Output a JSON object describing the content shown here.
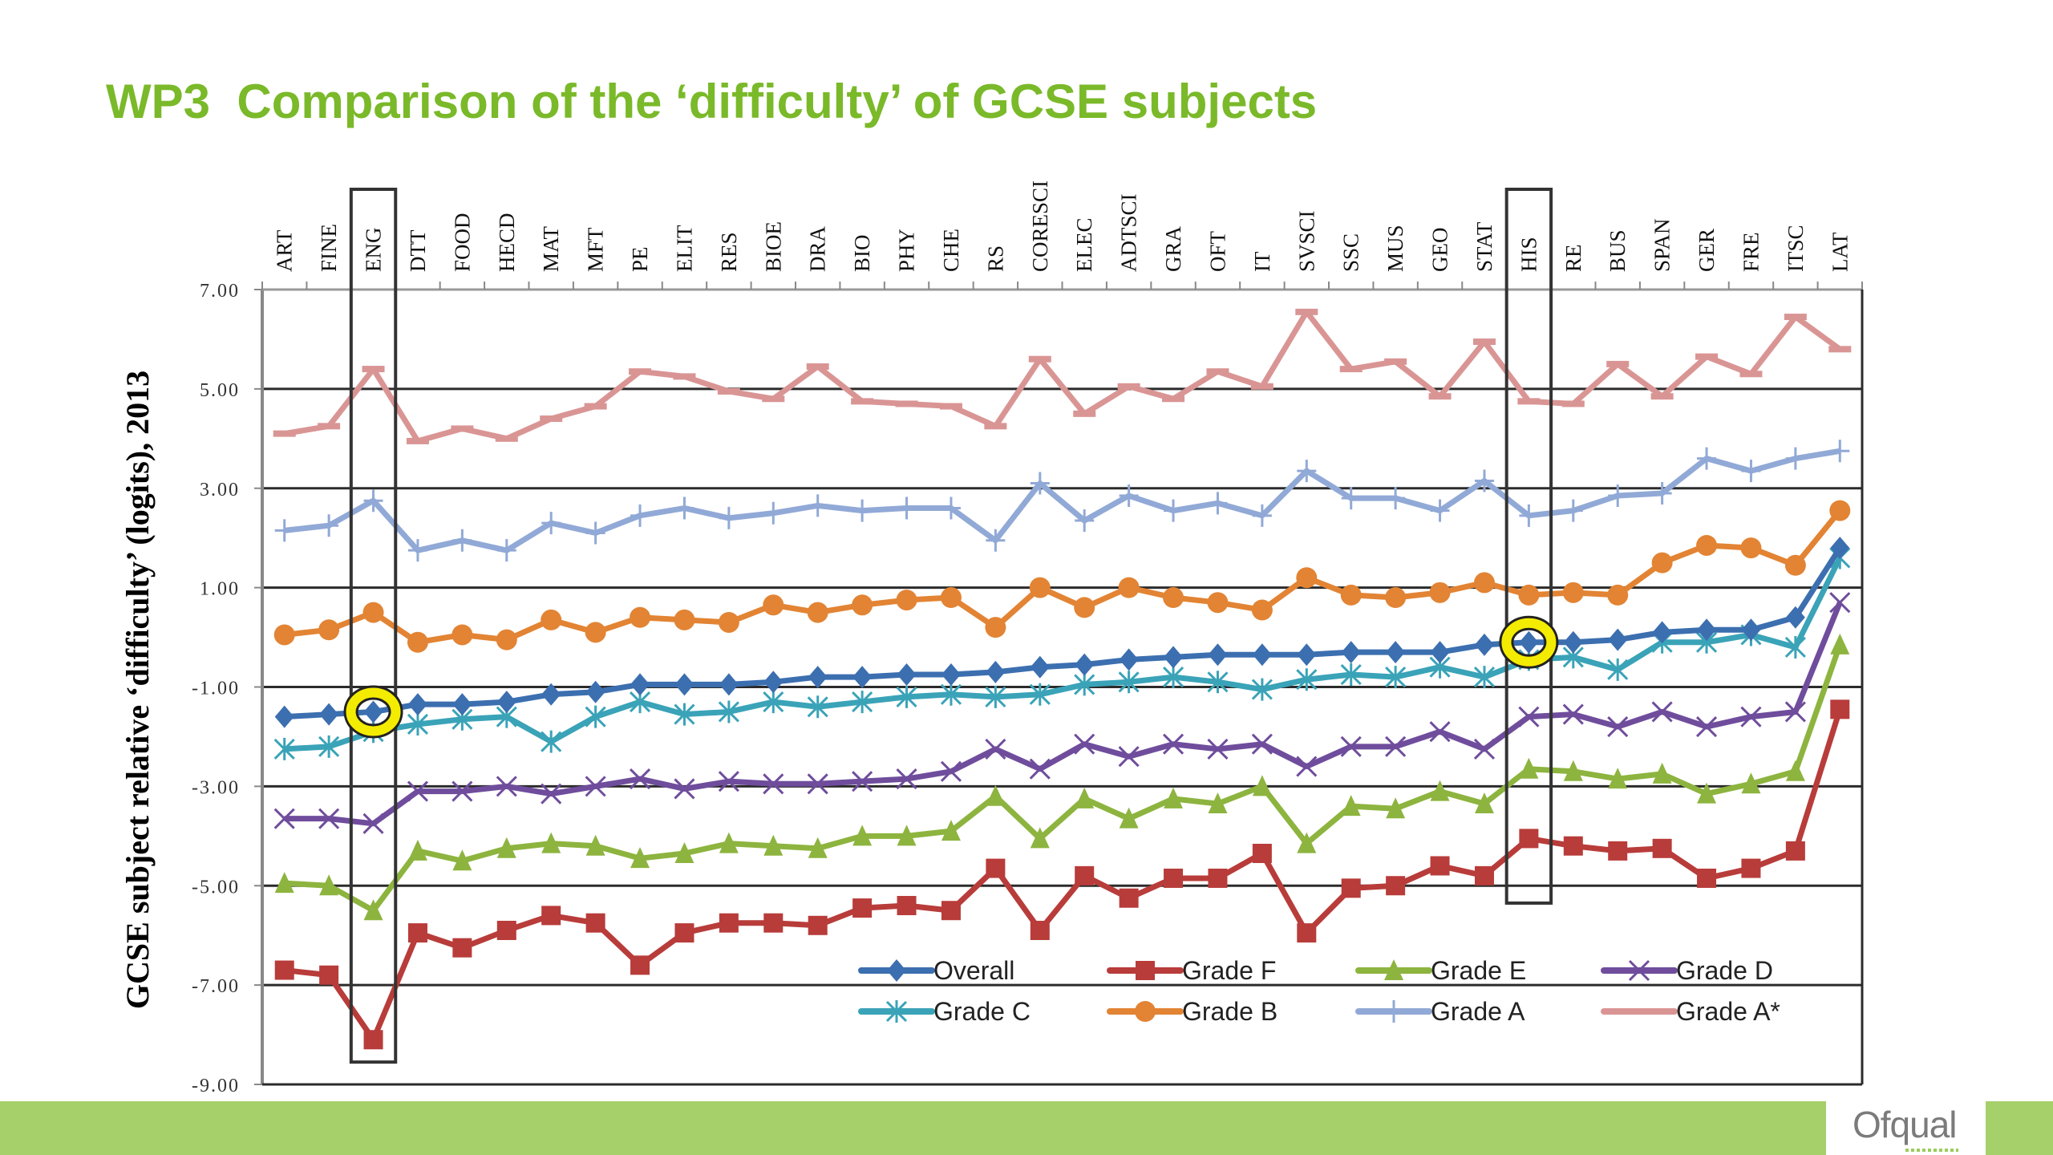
{
  "slide": {
    "title": "WP3  Comparison of the ‘difficulty’ of GCSE subjects",
    "logo": "Ofqual",
    "brand_color": "#7ab929",
    "footer_color": "#a6d06a"
  },
  "chart_data": {
    "type": "line",
    "title": "WP3  Comparison of the ‘difficulty’ of GCSE subjects",
    "xlabel": "",
    "ylabel": "GCSE subject relative ‘difficulty’ (logits), 2013",
    "ylim": [
      -9,
      7
    ],
    "yticks": [
      "7.00",
      "5.00",
      "3.00",
      "1.00",
      "-1.00",
      "-3.00",
      "-5.00",
      "-7.00",
      "-9.00"
    ],
    "ytick_values": [
      7,
      5,
      3,
      1,
      -1,
      -3,
      -5,
      -7,
      -9
    ],
    "grid": "horizontal",
    "legend_position": "bottom-right",
    "categories": [
      "ART",
      "FINE",
      "ENG",
      "DTT",
      "FOOD",
      "HECD",
      "MAT",
      "MFT",
      "PE",
      "ELIT",
      "RES",
      "BIOE",
      "DRA",
      "BIO",
      "PHY",
      "CHE",
      "RS",
      "CORESCI",
      "ELEC",
      "ADTSCI",
      "GRA",
      "OFT",
      "IT",
      "SVSCI",
      "SSC",
      "MUS",
      "GEO",
      "STAT",
      "HIS",
      "RE",
      "BUS",
      "SPAN",
      "GER",
      "FRE",
      "ITSC",
      "LAT"
    ],
    "highlighted_categories": [
      {
        "category": "ENG",
        "highlighted_series": "Overall",
        "value": -1.5
      },
      {
        "category": "HIS",
        "highlighted_series": "Overall",
        "value": -0.1
      }
    ],
    "series": [
      {
        "name": "Overall",
        "color": "#3c6fb0",
        "marker": "diamond",
        "values": [
          -1.6,
          -1.55,
          -1.5,
          -1.35,
          -1.35,
          -1.3,
          -1.15,
          -1.1,
          -0.95,
          -0.95,
          -0.95,
          -0.9,
          -0.8,
          -0.8,
          -0.75,
          -0.75,
          -0.7,
          -0.6,
          -0.55,
          -0.45,
          -0.4,
          -0.35,
          -0.35,
          -0.35,
          -0.3,
          -0.3,
          -0.3,
          -0.15,
          -0.1,
          -0.1,
          -0.05,
          0.1,
          0.15,
          0.15,
          0.4,
          1.8
        ]
      },
      {
        "name": "Grade F",
        "color": "#b83c3a",
        "marker": "square",
        "values": [
          -6.7,
          -6.8,
          -8.1,
          -5.95,
          -6.25,
          -5.9,
          -5.6,
          -5.75,
          -6.6,
          -5.95,
          -5.75,
          -5.75,
          -5.8,
          -5.45,
          -5.4,
          -5.5,
          -4.65,
          -5.9,
          -4.8,
          -5.25,
          -4.85,
          -4.85,
          -4.35,
          -5.95,
          -5.05,
          -5.0,
          -4.6,
          -4.8,
          -4.05,
          -4.2,
          -4.3,
          -4.25,
          -4.85,
          -4.65,
          -4.3,
          -1.45
        ]
      },
      {
        "name": "Grade E",
        "color": "#8db43f",
        "marker": "triangle",
        "values": [
          -4.95,
          -5.0,
          -5.5,
          -4.3,
          -4.5,
          -4.25,
          -4.15,
          -4.2,
          -4.45,
          -4.35,
          -4.15,
          -4.2,
          -4.25,
          -4.0,
          -4.0,
          -3.9,
          -3.2,
          -4.05,
          -3.25,
          -3.65,
          -3.25,
          -3.35,
          -3.0,
          -4.15,
          -3.4,
          -3.45,
          -3.1,
          -3.35,
          -2.65,
          -2.7,
          -2.85,
          -2.75,
          -3.15,
          -2.95,
          -2.7,
          -0.15
        ]
      },
      {
        "name": "Grade D",
        "color": "#6f4d9c",
        "marker": "x",
        "values": [
          -3.65,
          -3.65,
          -3.75,
          -3.1,
          -3.1,
          -3.0,
          -3.15,
          -3.0,
          -2.85,
          -3.05,
          -2.9,
          -2.95,
          -2.95,
          -2.9,
          -2.85,
          -2.7,
          -2.25,
          -2.65,
          -2.15,
          -2.4,
          -2.15,
          -2.25,
          -2.15,
          -2.6,
          -2.2,
          -2.2,
          -1.9,
          -2.25,
          -1.6,
          -1.55,
          -1.8,
          -1.5,
          -1.8,
          -1.6,
          -1.5,
          0.7
        ]
      },
      {
        "name": "Grade C",
        "color": "#3aa3b8",
        "marker": "star",
        "values": [
          -2.25,
          -2.2,
          -1.9,
          -1.75,
          -1.65,
          -1.6,
          -2.1,
          -1.6,
          -1.3,
          -1.55,
          -1.5,
          -1.3,
          -1.4,
          -1.3,
          -1.2,
          -1.15,
          -1.2,
          -1.15,
          -0.95,
          -0.9,
          -0.8,
          -0.9,
          -1.05,
          -0.85,
          -0.75,
          -0.8,
          -0.6,
          -0.8,
          -0.45,
          -0.4,
          -0.65,
          -0.1,
          -0.1,
          0.05,
          -0.2,
          1.6
        ]
      },
      {
        "name": "Grade B",
        "color": "#e28434",
        "marker": "circle",
        "values": [
          0.05,
          0.15,
          0.5,
          -0.1,
          0.05,
          -0.05,
          0.35,
          0.1,
          0.4,
          0.35,
          0.3,
          0.65,
          0.5,
          0.65,
          0.75,
          0.8,
          0.2,
          1.0,
          0.6,
          1.0,
          0.8,
          0.7,
          0.55,
          1.2,
          0.85,
          0.8,
          0.9,
          1.1,
          0.85,
          0.9,
          0.85,
          1.5,
          1.85,
          1.8,
          1.45,
          2.55
        ]
      },
      {
        "name": "Grade A",
        "color": "#91a9d6",
        "marker": "plus",
        "values": [
          2.15,
          2.25,
          2.75,
          1.75,
          1.95,
          1.75,
          2.3,
          2.1,
          2.45,
          2.6,
          2.4,
          2.5,
          2.65,
          2.55,
          2.6,
          2.6,
          1.95,
          3.1,
          2.35,
          2.85,
          2.55,
          2.7,
          2.45,
          3.35,
          2.8,
          2.8,
          2.55,
          3.15,
          2.45,
          2.55,
          2.85,
          2.9,
          3.6,
          3.35,
          3.6,
          3.75
        ]
      },
      {
        "name": "Grade A*",
        "color": "#d99594",
        "marker": "dash",
        "values": [
          4.1,
          4.25,
          5.4,
          3.95,
          4.2,
          4.0,
          4.4,
          4.65,
          5.35,
          5.25,
          4.95,
          4.8,
          5.45,
          4.75,
          4.7,
          4.65,
          4.25,
          5.6,
          4.5,
          5.05,
          4.8,
          5.35,
          5.05,
          6.55,
          5.4,
          5.55,
          4.85,
          5.95,
          4.75,
          4.7,
          5.5,
          4.85,
          5.65,
          5.3,
          6.45,
          5.8
        ]
      }
    ],
    "legend_order": [
      "Overall",
      "Grade F",
      "Grade E",
      "Grade D",
      "Grade C",
      "Grade B",
      "Grade A",
      "Grade A*"
    ]
  }
}
